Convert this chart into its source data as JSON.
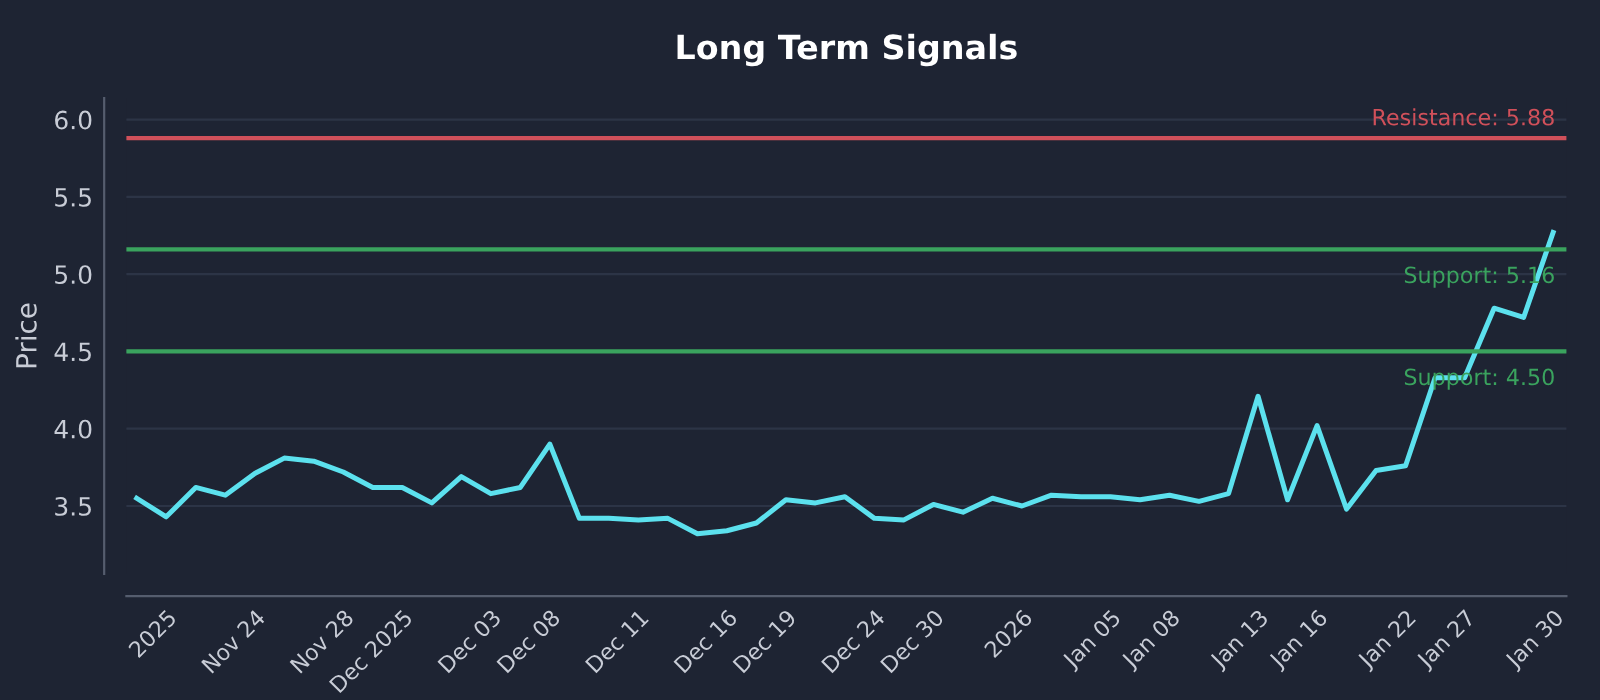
{
  "chart_data": {
    "type": "line",
    "title": "Long Term Signals",
    "ylabel": "Price",
    "categories": [
      null,
      "2025",
      null,
      null,
      "Nov 24",
      null,
      null,
      "Nov 28",
      null,
      "Dec 2025",
      null,
      null,
      "Dec 03",
      null,
      "Dec 08",
      null,
      null,
      "Dec 11",
      null,
      null,
      "Dec 16",
      null,
      "Dec 19",
      null,
      null,
      "Dec 24",
      null,
      "Dec 30",
      null,
      null,
      "2026",
      null,
      null,
      "Jan 05",
      null,
      "Jan 08",
      null,
      null,
      "Jan 13",
      null,
      "Jan 16",
      null,
      null,
      "Jan 22",
      null,
      "Jan 27",
      null,
      null,
      "Jan 30"
    ],
    "series": [
      {
        "color": "#5ce1ee",
        "values": [
          3.55,
          3.43,
          3.62,
          3.57,
          3.71,
          3.81,
          3.79,
          3.72,
          3.62,
          3.62,
          3.52,
          3.69,
          3.58,
          3.62,
          3.9,
          3.42,
          3.42,
          3.41,
          3.42,
          3.32,
          3.34,
          3.39,
          3.54,
          3.52,
          3.56,
          3.42,
          3.41,
          3.51,
          3.46,
          3.55,
          3.5,
          3.57,
          3.56,
          3.56,
          3.54,
          3.57,
          3.53,
          3.58,
          4.21,
          3.54,
          4.02,
          3.48,
          3.73,
          3.76,
          4.33,
          4.33,
          4.78,
          4.72,
          5.27
        ]
      }
    ],
    "ylim": [
      3.06,
      6.14
    ],
    "yticks": [
      3.5,
      {
        "value": 4,
        "label": "4.0"
      },
      4.5,
      {
        "value": 5,
        "label": "5.0"
      },
      5.5,
      {
        "value": 6,
        "label": "6.0"
      }
    ],
    "grid": "y",
    "ref_lines": [
      {
        "axis": "y",
        "value": 5.88,
        "label": "Resistance: 5.88",
        "color": "#d0505a"
      },
      {
        "axis": "y",
        "value": 5.16,
        "label": "Support: 5.16",
        "color": "#3aa35e"
      },
      {
        "axis": "y",
        "value": 4.5,
        "label": "Support: 4.50",
        "color": "#3aa35e"
      }
    ]
  }
}
